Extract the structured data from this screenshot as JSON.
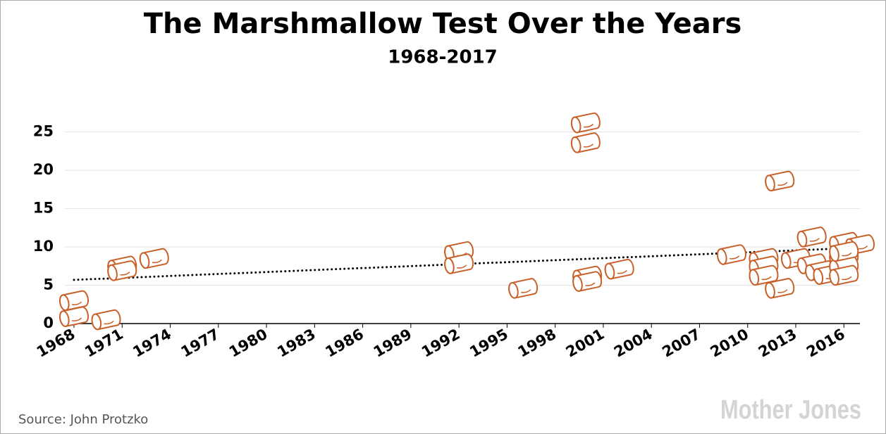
{
  "chart_data": {
    "type": "scatter",
    "title": "The Marshmallow Test Over the Years",
    "subtitle": "1968-2017",
    "source": "Source: John Protzko",
    "brand": "Mother Jones",
    "color": "#c8602a",
    "grid": true,
    "xlim": [
      1968,
      2017
    ],
    "ylim": [
      0,
      28
    ],
    "xticks": [
      1968,
      1971,
      1974,
      1977,
      1980,
      1983,
      1986,
      1989,
      1992,
      1995,
      1998,
      2001,
      2004,
      2007,
      2010,
      2013,
      2016
    ],
    "yticks": [
      0,
      5,
      10,
      15,
      20,
      25
    ],
    "x": [
      1968,
      1968,
      1970,
      1971,
      1971,
      1973,
      1992,
      1992,
      1996,
      1999.9,
      1999.9,
      2000,
      2000,
      2002,
      2009,
      2011,
      2011,
      2011,
      2012,
      2012,
      2013,
      2014,
      2014,
      2014.5,
      2015,
      2016,
      2016,
      2016,
      2016,
      2017,
      2016
    ],
    "values": [
      3.0,
      0.9,
      0.5,
      7.5,
      6.9,
      8.5,
      9.4,
      7.8,
      4.6,
      26.2,
      23.6,
      6.2,
      5.5,
      7.1,
      9.0,
      8.5,
      7.5,
      6.3,
      4.6,
      18.6,
      8.5,
      11.3,
      7.8,
      6.9,
      6.4,
      10.6,
      8.7,
      7.5,
      6.3,
      10.3,
      9.4
    ],
    "trend_line": {
      "x": [
        1968,
        2017
      ],
      "y": [
        5.7,
        9.9
      ]
    }
  }
}
